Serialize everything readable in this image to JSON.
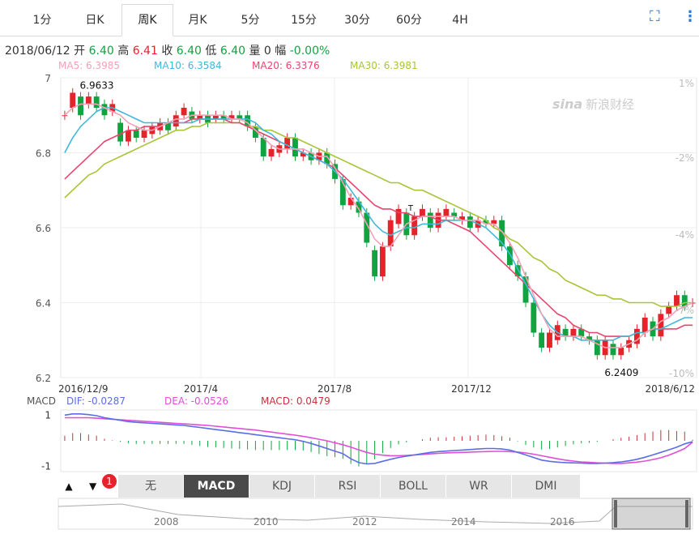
{
  "tabs": [
    {
      "label": "1分"
    },
    {
      "label": "日K"
    },
    {
      "label": "周K"
    },
    {
      "label": "月K"
    },
    {
      "label": "5分"
    },
    {
      "label": "15分"
    },
    {
      "label": "30分"
    },
    {
      "label": "60分"
    },
    {
      "label": "4H"
    }
  ],
  "quote": {
    "date": "2018/06/12",
    "open_label": "开",
    "open": "6.40",
    "high_label": "高",
    "high": "6.41",
    "close_label": "收",
    "close": "6.40",
    "low_label": "低",
    "low": "6.40",
    "vol_label": "量",
    "vol": "0",
    "chg_label": "幅",
    "chg": "-0.00%"
  },
  "ma": {
    "ma5": "MA5: 6.3985",
    "ma10": "MA10: 6.3584",
    "ma20": "MA20: 6.3376",
    "ma30": "MA30: 6.3981"
  },
  "watermark": "新浪财经",
  "watermark_logo": "sina",
  "indicator_buttons": [
    "无",
    "MACD",
    "KDJ",
    "RSI",
    "BOLL",
    "WR",
    "DMI"
  ],
  "active_indicator": "MACD",
  "arrow_up": "▲",
  "arrow_down": "▼",
  "badge_count": "1",
  "timeline_years": [
    "2008",
    "2010",
    "2012",
    "2014",
    "2016"
  ],
  "colors": {
    "up": "#e4232a",
    "down": "#12a341",
    "ma5": "#f4a1b7",
    "ma10": "#3fb8d8",
    "ma20": "#e8456f",
    "ma30": "#a7c537",
    "dif": "#5b6ee6",
    "dea": "#e04fd6",
    "macd": "#c8323a",
    "accent": "#2a7ad6"
  },
  "chart_data": [
    {
      "type": "candlestick",
      "title": "",
      "y_ticks": [
        "7",
        "6.8",
        "6.6",
        "6.4",
        "6.2"
      ],
      "y_right_ticks": [
        "1%",
        "-2%",
        "-4%",
        "-7%",
        "-10%"
      ],
      "x_ticks": [
        "2016/12/9",
        "2017/4",
        "2017/8",
        "2017/12",
        "2018/6/12"
      ],
      "ylim": [
        6.2,
        7.0
      ],
      "annotations": {
        "max_label": "6.9633",
        "min_label": "6.2409",
        "flag": "T"
      },
      "candles": [
        [
          6.9,
          6.9
        ],
        [
          6.92,
          6.96
        ],
        [
          6.95,
          6.9
        ],
        [
          6.93,
          6.95
        ],
        [
          6.95,
          6.92
        ],
        [
          6.93,
          6.9
        ],
        [
          6.91,
          6.93
        ],
        [
          6.88,
          6.83
        ],
        [
          6.83,
          6.86
        ],
        [
          6.86,
          6.84
        ],
        [
          6.84,
          6.86
        ],
        [
          6.85,
          6.87
        ],
        [
          6.86,
          6.88
        ],
        [
          6.88,
          6.86
        ],
        [
          6.87,
          6.9
        ],
        [
          6.9,
          6.92
        ],
        [
          6.91,
          6.89
        ],
        [
          6.89,
          6.9
        ],
        [
          6.9,
          6.88
        ],
        [
          6.89,
          6.9
        ],
        [
          6.9,
          6.89
        ],
        [
          6.89,
          6.9
        ],
        [
          6.9,
          6.89
        ],
        [
          6.9,
          6.87
        ],
        [
          6.87,
          6.84
        ],
        [
          6.84,
          6.79
        ],
        [
          6.79,
          6.81
        ],
        [
          6.8,
          6.82
        ],
        [
          6.81,
          6.84
        ],
        [
          6.84,
          6.79
        ],
        [
          6.79,
          6.8
        ],
        [
          6.8,
          6.78
        ],
        [
          6.78,
          6.8
        ],
        [
          6.8,
          6.77
        ],
        [
          6.77,
          6.73
        ],
        [
          6.73,
          6.66
        ],
        [
          6.66,
          6.68
        ],
        [
          6.67,
          6.64
        ],
        [
          6.64,
          6.56
        ],
        [
          6.54,
          6.47
        ],
        [
          6.47,
          6.55
        ],
        [
          6.55,
          6.62
        ],
        [
          6.61,
          6.65
        ],
        [
          6.64,
          6.58
        ],
        [
          6.58,
          6.63
        ],
        [
          6.63,
          6.65
        ],
        [
          6.64,
          6.6
        ],
        [
          6.6,
          6.64
        ],
        [
          6.63,
          6.65
        ],
        [
          6.64,
          6.63
        ],
        [
          6.62,
          6.63
        ],
        [
          6.63,
          6.6
        ],
        [
          6.6,
          6.62
        ],
        [
          6.62,
          6.61
        ],
        [
          6.61,
          6.62
        ],
        [
          6.62,
          6.55
        ],
        [
          6.55,
          6.5
        ],
        [
          6.5,
          6.47
        ],
        [
          6.47,
          6.4
        ],
        [
          6.4,
          6.32
        ],
        [
          6.32,
          6.28
        ],
        [
          6.28,
          6.32
        ],
        [
          6.3,
          6.34
        ],
        [
          6.33,
          6.31
        ],
        [
          6.31,
          6.33
        ],
        [
          6.33,
          6.31
        ],
        [
          6.31,
          6.3
        ],
        [
          6.3,
          6.26
        ],
        [
          6.26,
          6.3
        ],
        [
          6.29,
          6.26
        ],
        [
          6.26,
          6.28
        ],
        [
          6.28,
          6.3
        ],
        [
          6.29,
          6.33
        ],
        [
          6.32,
          6.36
        ],
        [
          6.35,
          6.31
        ],
        [
          6.31,
          6.37
        ],
        [
          6.37,
          6.39
        ],
        [
          6.39,
          6.42
        ],
        [
          6.42,
          6.39
        ],
        [
          6.4,
          6.4
        ]
      ],
      "ma5": [
        6.9,
        6.92,
        6.93,
        6.93,
        6.93,
        6.92,
        6.91,
        6.9,
        6.88,
        6.87,
        6.86,
        6.86,
        6.87,
        6.88,
        6.89,
        6.89,
        6.9,
        6.9,
        6.9,
        6.9,
        6.9,
        6.89,
        6.89,
        6.88,
        6.86,
        6.84,
        6.82,
        6.81,
        6.81,
        6.81,
        6.81,
        6.8,
        6.79,
        6.79,
        6.76,
        6.72,
        6.68,
        6.65,
        6.61,
        6.57,
        6.55,
        6.55,
        6.58,
        6.61,
        6.62,
        6.63,
        6.63,
        6.63,
        6.63,
        6.63,
        6.62,
        6.62,
        6.62,
        6.61,
        6.61,
        6.59,
        6.56,
        6.52,
        6.47,
        6.42,
        6.37,
        6.33,
        6.31,
        6.31,
        6.31,
        6.31,
        6.3,
        6.29,
        6.28,
        6.28,
        6.28,
        6.29,
        6.3,
        6.32,
        6.33,
        6.35,
        6.36,
        6.38,
        6.39,
        6.4
      ],
      "ma10": [
        6.8,
        6.84,
        6.87,
        6.89,
        6.91,
        6.92,
        6.92,
        6.91,
        6.9,
        6.89,
        6.88,
        6.88,
        6.88,
        6.88,
        6.88,
        6.88,
        6.88,
        6.89,
        6.89,
        6.89,
        6.89,
        6.89,
        6.89,
        6.89,
        6.88,
        6.86,
        6.85,
        6.83,
        6.82,
        6.81,
        6.8,
        6.79,
        6.78,
        6.77,
        6.75,
        6.73,
        6.7,
        6.67,
        6.64,
        6.61,
        6.59,
        6.58,
        6.59,
        6.6,
        6.6,
        6.61,
        6.61,
        6.61,
        6.62,
        6.62,
        6.62,
        6.62,
        6.61,
        6.6,
        6.58,
        6.56,
        6.53,
        6.49,
        6.45,
        6.41,
        6.37,
        6.34,
        6.32,
        6.31,
        6.31,
        6.3,
        6.3,
        6.3,
        6.3,
        6.3,
        6.31,
        6.31,
        6.32,
        6.32,
        6.33,
        6.33,
        6.34,
        6.35,
        6.36,
        6.36
      ],
      "ma20": [
        6.73,
        6.75,
        6.77,
        6.79,
        6.81,
        6.83,
        6.84,
        6.85,
        6.86,
        6.86,
        6.87,
        6.87,
        6.87,
        6.88,
        6.88,
        6.88,
        6.89,
        6.89,
        6.89,
        6.89,
        6.89,
        6.88,
        6.88,
        6.87,
        6.86,
        6.85,
        6.84,
        6.83,
        6.82,
        6.81,
        6.8,
        6.79,
        6.78,
        6.77,
        6.76,
        6.74,
        6.72,
        6.7,
        6.68,
        6.66,
        6.65,
        6.65,
        6.64,
        6.64,
        6.63,
        6.63,
        6.63,
        6.62,
        6.62,
        6.61,
        6.6,
        6.59,
        6.57,
        6.55,
        6.53,
        6.51,
        6.49,
        6.47,
        6.45,
        6.43,
        6.41,
        6.39,
        6.37,
        6.36,
        6.34,
        6.33,
        6.32,
        6.32,
        6.31,
        6.31,
        6.31,
        6.31,
        6.32,
        6.32,
        6.33,
        6.33,
        6.33,
        6.33,
        6.34,
        6.34
      ],
      "ma30": [
        6.68,
        6.7,
        6.72,
        6.74,
        6.75,
        6.77,
        6.78,
        6.79,
        6.8,
        6.81,
        6.82,
        6.83,
        6.84,
        6.85,
        6.86,
        6.86,
        6.87,
        6.87,
        6.88,
        6.88,
        6.88,
        6.88,
        6.88,
        6.87,
        6.87,
        6.86,
        6.86,
        6.85,
        6.84,
        6.84,
        6.83,
        6.82,
        6.81,
        6.8,
        6.79,
        6.78,
        6.77,
        6.76,
        6.75,
        6.74,
        6.73,
        6.72,
        6.72,
        6.71,
        6.7,
        6.7,
        6.69,
        6.68,
        6.67,
        6.66,
        6.65,
        6.64,
        6.63,
        6.62,
        6.6,
        6.59,
        6.57,
        6.56,
        6.54,
        6.52,
        6.51,
        6.49,
        6.48,
        6.46,
        6.45,
        6.44,
        6.43,
        6.42,
        6.42,
        6.41,
        6.41,
        6.4,
        6.4,
        6.4,
        6.4,
        6.39,
        6.39,
        6.39,
        6.4,
        6.4
      ]
    },
    {
      "type": "macd",
      "label": "MACD",
      "dif_label": "DIF: -0.0287",
      "dea_label": "DEA: -0.0526",
      "macd_label": "MACD: 0.0479",
      "y_ticks": [
        "1",
        "-1"
      ],
      "ylim": [
        -1.2,
        1.2
      ],
      "dif": [
        1.0,
        1.05,
        1.05,
        1.02,
        0.98,
        0.9,
        0.85,
        0.8,
        0.75,
        0.72,
        0.7,
        0.68,
        0.66,
        0.64,
        0.62,
        0.6,
        0.56,
        0.52,
        0.48,
        0.44,
        0.4,
        0.36,
        0.32,
        0.28,
        0.24,
        0.2,
        0.16,
        0.12,
        0.08,
        0.04,
        -0.02,
        -0.1,
        -0.2,
        -0.3,
        -0.4,
        -0.5,
        -0.7,
        -0.85,
        -0.9,
        -0.88,
        -0.8,
        -0.72,
        -0.65,
        -0.6,
        -0.55,
        -0.5,
        -0.45,
        -0.42,
        -0.4,
        -0.38,
        -0.36,
        -0.34,
        -0.32,
        -0.3,
        -0.3,
        -0.32,
        -0.36,
        -0.45,
        -0.55,
        -0.65,
        -0.75,
        -0.8,
        -0.83,
        -0.85,
        -0.86,
        -0.87,
        -0.88,
        -0.88,
        -0.87,
        -0.85,
        -0.82,
        -0.78,
        -0.72,
        -0.64,
        -0.55,
        -0.45,
        -0.35,
        -0.25,
        -0.12,
        -0.03
      ],
      "dea": [
        0.9,
        0.9,
        0.9,
        0.9,
        0.88,
        0.86,
        0.84,
        0.82,
        0.8,
        0.78,
        0.76,
        0.74,
        0.72,
        0.7,
        0.68,
        0.66,
        0.64,
        0.62,
        0.6,
        0.57,
        0.54,
        0.51,
        0.48,
        0.45,
        0.42,
        0.38,
        0.34,
        0.3,
        0.26,
        0.22,
        0.17,
        0.12,
        0.06,
        0.0,
        -0.08,
        -0.15,
        -0.25,
        -0.35,
        -0.45,
        -0.52,
        -0.56,
        -0.58,
        -0.58,
        -0.57,
        -0.55,
        -0.53,
        -0.51,
        -0.49,
        -0.47,
        -0.46,
        -0.45,
        -0.44,
        -0.43,
        -0.42,
        -0.41,
        -0.41,
        -0.42,
        -0.44,
        -0.47,
        -0.52,
        -0.58,
        -0.64,
        -0.7,
        -0.75,
        -0.79,
        -0.82,
        -0.84,
        -0.86,
        -0.87,
        -0.88,
        -0.88,
        -0.86,
        -0.83,
        -0.79,
        -0.73,
        -0.66,
        -0.56,
        -0.44,
        -0.3,
        -0.05
      ]
    }
  ]
}
